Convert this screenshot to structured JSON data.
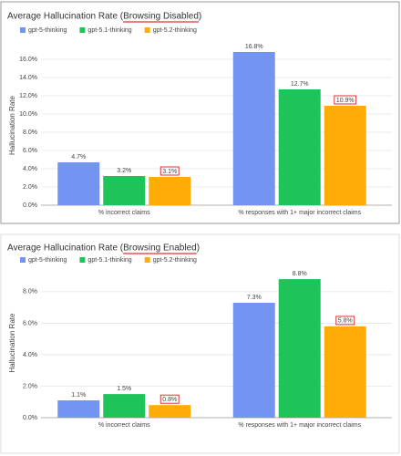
{
  "chart_data": [
    {
      "type": "bar",
      "title": "Average Hallucination Rate (Browsing Disabled)",
      "y_label": "Hallucination Rate",
      "categories": [
        "% incorrect claims",
        "% responses with 1+ major incorrect claims"
      ],
      "series": [
        {
          "name": "gpt-5-thinking",
          "color": "#7494f2",
          "values": [
            4.7,
            16.8
          ],
          "value_labels": [
            "4.7%",
            "16.8%"
          ]
        },
        {
          "name": "gpt-5.1-thinking",
          "color": "#1ec45a",
          "values": [
            3.2,
            12.7
          ],
          "value_labels": [
            "3.2%",
            "12.7%"
          ]
        },
        {
          "name": "gpt-5.2-thinking",
          "color": "#ffac08",
          "values": [
            3.1,
            10.9
          ],
          "value_labels": [
            "3.1%",
            "10.9%"
          ]
        }
      ],
      "ylim": [
        0,
        17.5
      ],
      "yticks": [
        {
          "value": 0,
          "label": "0.0%"
        },
        {
          "value": 2,
          "label": "2.0%"
        },
        {
          "value": 4,
          "label": "4.0%"
        },
        {
          "value": 6,
          "label": "6.0%"
        },
        {
          "value": 8,
          "label": "8.0%"
        },
        {
          "value": 10,
          "label": "10.0%"
        },
        {
          "value": 12,
          "label": "12.0%"
        },
        {
          "value": 14,
          "label": "14.0%"
        },
        {
          "value": 16,
          "label": "16.0%"
        }
      ],
      "grid": true
    },
    {
      "type": "bar",
      "title": "Average Hallucination Rate (Browsing Enabled)",
      "y_label": "Hallucination Rate",
      "categories": [
        "% incorrect claims",
        "% responses with 1+ major incorrect claims"
      ],
      "series": [
        {
          "name": "gpt-5-thinking",
          "color": "#7494f2",
          "values": [
            1.1,
            7.3
          ],
          "value_labels": [
            "1.1%",
            "7.3%"
          ]
        },
        {
          "name": "gpt-5.1-thinking",
          "color": "#1ec45a",
          "values": [
            1.5,
            8.8
          ],
          "value_labels": [
            "1.5%",
            "8.8%"
          ]
        },
        {
          "name": "gpt-5.2-thinking",
          "color": "#ffac08",
          "values": [
            0.8,
            5.8
          ],
          "value_labels": [
            "0.8%",
            "5.8%"
          ]
        }
      ],
      "ylim": [
        0,
        9.5
      ],
      "yticks": [
        {
          "value": 0,
          "label": "0.0%"
        },
        {
          "value": 2,
          "label": "2.0%"
        },
        {
          "value": 4,
          "label": "4.0%"
        },
        {
          "value": 6,
          "label": "6.0%"
        },
        {
          "value": 8,
          "label": "8.0%"
        }
      ],
      "grid": true
    }
  ]
}
